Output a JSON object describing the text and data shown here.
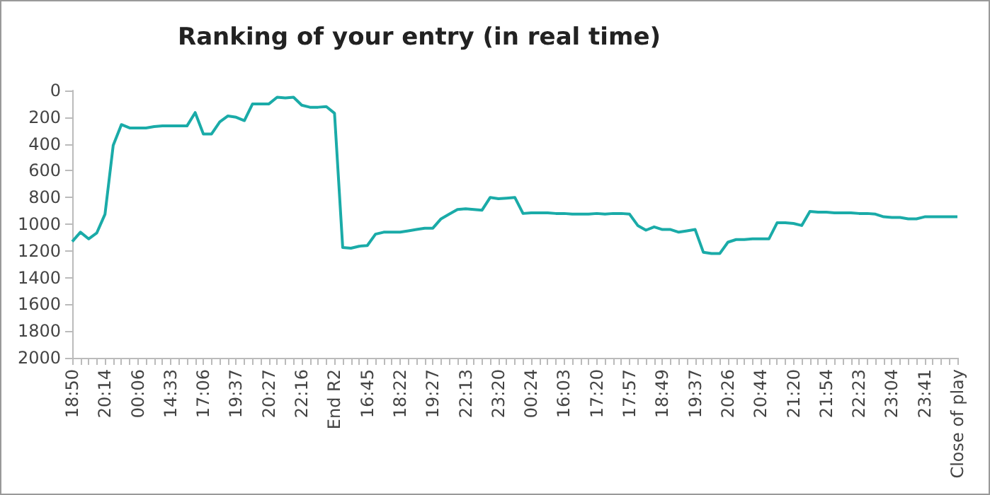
{
  "chart_data": {
    "type": "line",
    "title": "Ranking of your entry (in real time)",
    "categories": [
      "18:50",
      null,
      null,
      null,
      "20:14",
      null,
      null,
      null,
      "00:06",
      null,
      null,
      null,
      "14:33",
      null,
      null,
      null,
      "17:06",
      null,
      null,
      null,
      "19:37",
      null,
      null,
      null,
      "20:27",
      null,
      null,
      null,
      "22:16",
      null,
      null,
      null,
      "End R2",
      null,
      null,
      null,
      "16:45",
      null,
      null,
      null,
      "18:22",
      null,
      null,
      null,
      "19:27",
      null,
      null,
      null,
      "22:13",
      null,
      null,
      null,
      "23:20",
      null,
      null,
      null,
      "00:24",
      null,
      null,
      null,
      "16:03",
      null,
      null,
      null,
      "17:20",
      null,
      null,
      null,
      "17:57",
      null,
      null,
      null,
      "18:49",
      null,
      null,
      null,
      "19:37",
      null,
      null,
      null,
      "20:26",
      null,
      null,
      null,
      "20:44",
      null,
      null,
      null,
      "21:20",
      null,
      null,
      null,
      "21:54",
      null,
      null,
      null,
      "22:23",
      null,
      null,
      null,
      "23:04",
      null,
      null,
      null,
      "23:41",
      null,
      null,
      null,
      "Close of play"
    ],
    "series": [
      {
        "color": "#1aaba8",
        "values": [
          1130,
          1060,
          1110,
          1065,
          925,
          410,
          255,
          280,
          280,
          280,
          270,
          265,
          265,
          265,
          265,
          165,
          325,
          325,
          235,
          190,
          200,
          225,
          100,
          100,
          100,
          50,
          55,
          50,
          110,
          125,
          125,
          120,
          170,
          1175,
          1180,
          1165,
          1160,
          1075,
          1060,
          1060,
          1060,
          1050,
          1040,
          1030,
          1030,
          960,
          925,
          890,
          885,
          890,
          895,
          800,
          810,
          805,
          800,
          920,
          915,
          915,
          915,
          920,
          920,
          925,
          925,
          925,
          920,
          925,
          920,
          920,
          925,
          1010,
          1045,
          1020,
          1040,
          1040,
          1060,
          1050,
          1040,
          1210,
          1220,
          1220,
          1135,
          1115,
          1115,
          1110,
          1110,
          1110,
          990,
          990,
          995,
          1010,
          905,
          910,
          910,
          915,
          915,
          915,
          920,
          920,
          925,
          945,
          950,
          950,
          960,
          960,
          945,
          945,
          945,
          945,
          945
        ]
      }
    ],
    "ylim": [
      2000,
      0
    ],
    "yticks": [
      0,
      200,
      400,
      600,
      800,
      1000,
      1200,
      1400,
      1600,
      1800,
      2000
    ],
    "grid": false,
    "marker": "none",
    "line_style": "solid"
  }
}
